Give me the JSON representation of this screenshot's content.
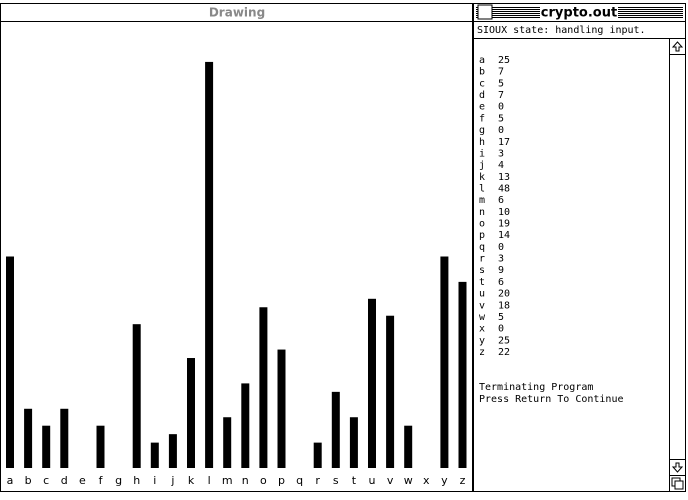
{
  "drawing_window": {
    "title": "Drawing",
    "categories": [
      "a",
      "b",
      "c",
      "d",
      "e",
      "f",
      "g",
      "h",
      "i",
      "j",
      "k",
      "l",
      "m",
      "n",
      "o",
      "p",
      "q",
      "r",
      "s",
      "t",
      "u",
      "v",
      "w",
      "x",
      "y",
      "z"
    ],
    "values": [
      25,
      7,
      5,
      7,
      0,
      5,
      0,
      17,
      3,
      4,
      13,
      48,
      6,
      10,
      19,
      14,
      0,
      3,
      9,
      6,
      20,
      18,
      5,
      0,
      25,
      22
    ]
  },
  "output_window": {
    "title": "crypto.out",
    "status": "SIOUX state: handling input.",
    "footer": [
      "Terminating Program",
      "Press Return To Continue"
    ]
  }
}
